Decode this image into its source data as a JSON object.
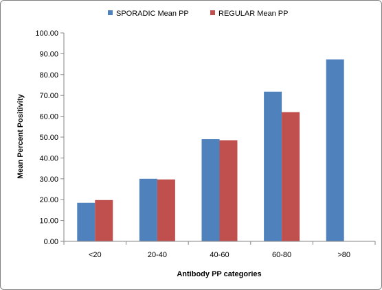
{
  "chart_data": {
    "type": "bar",
    "categories": [
      "<20",
      "20-40",
      "40-60",
      "60-80",
      ">80"
    ],
    "series": [
      {
        "name": "SPORADIC Mean PP",
        "color": "#4f81bd",
        "values": [
          18.5,
          30.0,
          49.0,
          71.8,
          87.3
        ]
      },
      {
        "name": "REGULAR Mean PP",
        "color": "#c0504d",
        "values": [
          19.8,
          29.7,
          48.5,
          62.0,
          null
        ]
      }
    ],
    "yticks": [
      "0.00",
      "10.00",
      "20.00",
      "30.00",
      "40.00",
      "50.00",
      "60.00",
      "70.00",
      "80.00",
      "90.00",
      "100.00"
    ],
    "ylim": [
      0,
      100
    ],
    "xlabel": "Antibody PP categories",
    "ylabel": "Mean Percent Positivity",
    "legend_position": "top-center",
    "grid": false
  }
}
